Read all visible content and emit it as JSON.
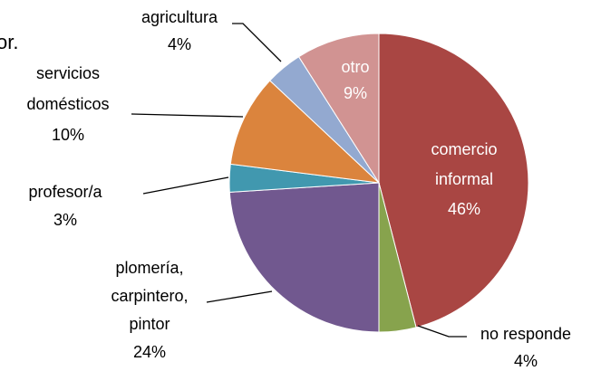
{
  "chart_data": {
    "type": "pie",
    "fragment": "or.",
    "categories": [
      [
        "comercio",
        "informal"
      ],
      [
        "no responde"
      ],
      [
        "plomería,",
        "carpintero,",
        "pintor"
      ],
      [
        "profesor/a"
      ],
      [
        "servicios",
        "domésticos"
      ],
      [
        "agricultura"
      ],
      [
        "otro"
      ]
    ],
    "values": [
      46,
      4,
      24,
      3,
      10,
      4,
      9
    ],
    "value_labels": [
      "46%",
      "4%",
      "24%",
      "3%",
      "10%",
      "4%",
      "9%"
    ],
    "colors": [
      "#a94643",
      "#87a34d",
      "#71588f",
      "#4198af",
      "#db843d",
      "#93a9d0",
      "#d19392"
    ]
  }
}
